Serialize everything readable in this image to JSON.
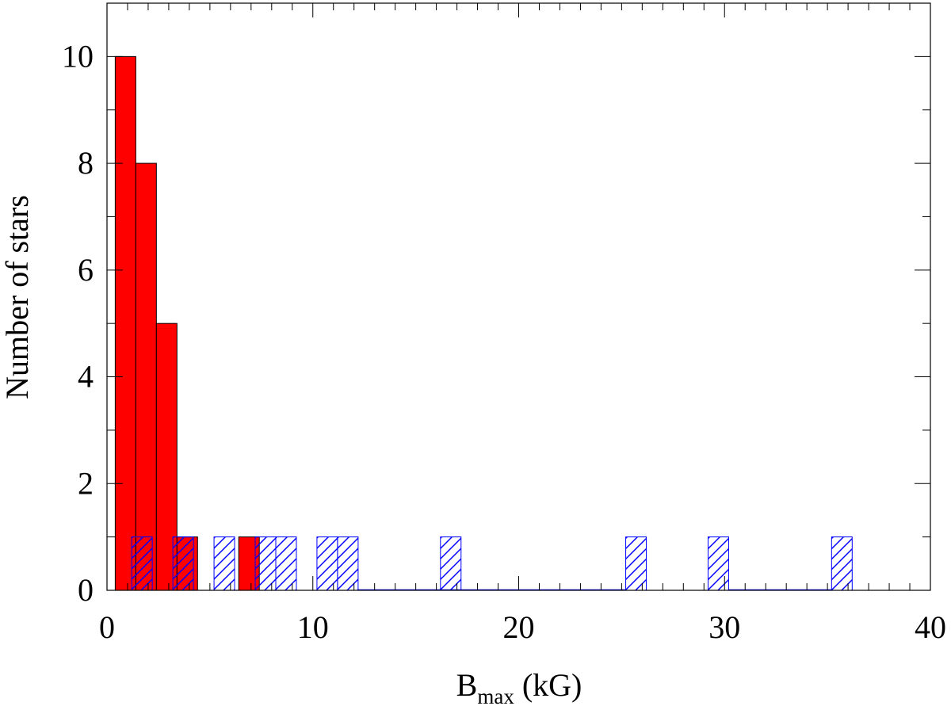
{
  "chart_data": {
    "type": "bar",
    "xlabel_main": "B",
    "xlabel_sub": "max",
    "xlabel_unit": " (kG)",
    "ylabel": "Number of stars",
    "xlim": [
      0,
      40
    ],
    "ylim": [
      0,
      11
    ],
    "x_ticks": [
      0,
      10,
      20,
      30,
      40
    ],
    "y_ticks": [
      0,
      2,
      4,
      6,
      8,
      10
    ],
    "x_minor_step": 1,
    "y_minor_step": 1,
    "bin_width": 1,
    "grid": false,
    "series": [
      {
        "style": "solid",
        "color": "#ff0000",
        "bins": [
          {
            "x0": 0.4,
            "x1": 1.4,
            "count": 10
          },
          {
            "x0": 1.4,
            "x1": 2.4,
            "count": 8
          },
          {
            "x0": 2.4,
            "x1": 3.4,
            "count": 5
          },
          {
            "x0": 3.4,
            "x1": 4.4,
            "count": 1
          },
          {
            "x0": 6.4,
            "x1": 7.4,
            "count": 1
          }
        ]
      },
      {
        "style": "hatched",
        "color": "#0000ff",
        "bins": [
          {
            "x0": 1.2,
            "x1": 2.2,
            "count": 1
          },
          {
            "x0": 3.2,
            "x1": 4.2,
            "count": 1
          },
          {
            "x0": 5.2,
            "x1": 6.2,
            "count": 1
          },
          {
            "x0": 7.2,
            "x1": 8.2,
            "count": 1
          },
          {
            "x0": 8.2,
            "x1": 9.2,
            "count": 1
          },
          {
            "x0": 10.2,
            "x1": 11.2,
            "count": 1
          },
          {
            "x0": 11.2,
            "x1": 12.2,
            "count": 1
          },
          {
            "x0": 16.2,
            "x1": 17.2,
            "count": 1
          },
          {
            "x0": 25.2,
            "x1": 26.2,
            "count": 1
          },
          {
            "x0": 29.2,
            "x1": 30.2,
            "count": 1
          },
          {
            "x0": 35.2,
            "x1": 36.2,
            "count": 1
          }
        ]
      }
    ],
    "baseline_segments": [
      [
        12.2,
        25.2
      ],
      [
        30.2,
        35.2
      ]
    ]
  }
}
